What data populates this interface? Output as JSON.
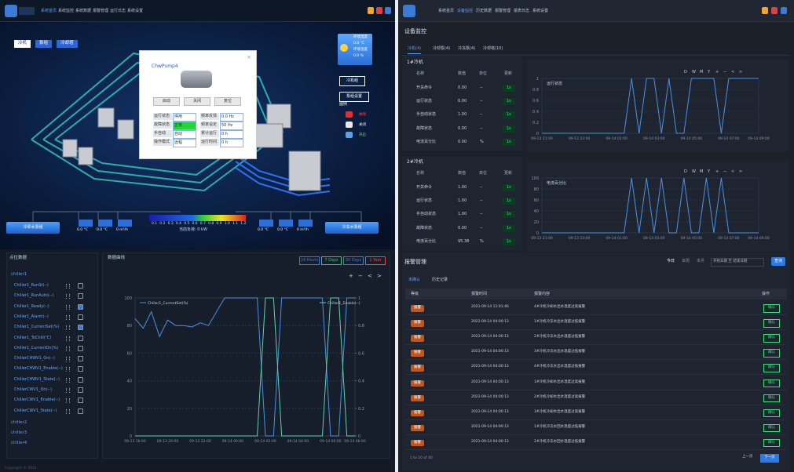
{
  "left": {
    "nav": [
      "系统首页",
      "系统监控",
      "系统数据",
      "报警管理",
      "运行日志",
      "系统设置"
    ],
    "scene": {
      "tabs": [
        "冷机",
        "泵组",
        "冷却塔"
      ],
      "env": [
        "环境温度",
        "0.0 °C",
        "环境湿度",
        "0.0 %"
      ],
      "buttons": [
        "冷机组",
        "泵组设置"
      ],
      "legend_title": "图例",
      "legend": [
        "故障",
        "关闭",
        "开启"
      ],
      "colorbar": [
        "0.1",
        "0.2",
        "0.3",
        "0.4",
        "0.5",
        "0.6",
        "0.7",
        "0.8",
        "0.9",
        "1.0",
        "1.1",
        "1.2"
      ],
      "load": "当前负荷: 0 kW",
      "left_group": "冷却水泵组",
      "right_group": "冷冻水泵组",
      "left_boxes": [
        "0.0 °C",
        "0.0 °C",
        "0 m³/h"
      ],
      "right_boxes": [
        "0.0 °C",
        "0.0 °C",
        "0 m³/h"
      ]
    },
    "popup": {
      "title": "ChwPump4",
      "buttons": [
        "启动",
        "关闭",
        "复位"
      ],
      "rows": [
        [
          "运行状态",
          "停用",
          "频率反馈",
          "0.0 Hz"
        ],
        [
          "故障状态",
          "正常",
          "频率设定",
          "50 Hz"
        ],
        [
          "手自动",
          "自动",
          "累计运行",
          "0 h"
        ],
        [
          "操作模式",
          "远程",
          "运行时间",
          "0 h"
        ]
      ]
    },
    "points": {
      "title": "点位数据",
      "groups": [
        "chiller1",
        "chiller2",
        "chiller3",
        "chiller4"
      ],
      "items": [
        {
          "name": "Chiller1_RunSt(--)",
          "checked": false
        },
        {
          "name": "Chiller1_RunAuto(--)",
          "checked": false
        },
        {
          "name": "Chiller1_Ready(--)",
          "checked": true
        },
        {
          "name": "Chiller1_Alarm(--)",
          "checked": false
        },
        {
          "name": "Chiller1_CurrentSet(%)",
          "checked": true
        },
        {
          "name": "Chiller1_ToChill(℃)",
          "checked": false
        },
        {
          "name": "Chiller1_CurrentOn(%)",
          "checked": false
        },
        {
          "name": "ChillerCHWV1_On(--)",
          "checked": false
        },
        {
          "name": "ChillerCHWV1_Enable(--)",
          "checked": false
        },
        {
          "name": "ChillerCHWV1_State(--)",
          "checked": false
        },
        {
          "name": "ChillerCWV1_On(--)",
          "checked": false
        },
        {
          "name": "ChillerCWV1_Enable(--)",
          "checked": false
        },
        {
          "name": "ChillerCWV1_State(--)",
          "checked": false
        }
      ]
    },
    "curve": {
      "title": "数据曲线",
      "ranges": [
        "24 Hours",
        "7 Days",
        "30 Days",
        "1 Year"
      ],
      "tools": [
        "+",
        "−",
        "<",
        ">"
      ],
      "chart": {
        "type": "line",
        "ylim": [
          0,
          100
        ],
        "yticks": [
          0,
          20,
          40,
          60,
          80,
          100
        ],
        "y2lim": [
          0,
          1
        ],
        "y2ticks": [
          0,
          0.2,
          0.4,
          0.6,
          0.8,
          1
        ],
        "categories": [
          "09-13 18:00",
          null,
          null,
          null,
          "09-13 20:00",
          null,
          null,
          null,
          "09-13 22:00",
          null,
          null,
          null,
          "09-14 00:00",
          null,
          null,
          null,
          "09-14 02:00",
          null,
          null,
          null,
          "09-14 04:00",
          null,
          null,
          null,
          "09-14 06:00",
          null,
          null,
          "09-14 08:00"
        ],
        "series": [
          {
            "name": "Chiller1_CurrentSet(%)",
            "color": "#4a90e2",
            "values": [
              85,
              78,
              90,
              72,
              84,
              80,
              80,
              79,
              82,
              80,
              90,
              100,
              100,
              100,
              100,
              100,
              0,
              0,
              100,
              100,
              100,
              100,
              100,
              100,
              0,
              0,
              100,
              100
            ]
          },
          {
            "name": "Chiller1_Enable(--)",
            "color": "#5fd3a8",
            "axis": "y2",
            "values": [
              0,
              0,
              0,
              0,
              0,
              0,
              0,
              0,
              0,
              0,
              0,
              0,
              0,
              0,
              0,
              0,
              1,
              1,
              0,
              0,
              0,
              0,
              0,
              0,
              1,
              1,
              0,
              0
            ]
          }
        ]
      }
    },
    "footer": "Copyright © 2021"
  },
  "right": {
    "nav": [
      "系统首页",
      "设备监控",
      "历史数据",
      "报警管理",
      "报表日志",
      "系统设置"
    ],
    "title": "设备监控",
    "tabs": [
      "冷机(4)",
      "冷却泵(4)",
      "冷冻泵(4)",
      "冷却塔(10)"
    ],
    "headers": [
      "名称",
      "数值",
      "单位",
      "更新"
    ],
    "units": [
      {
        "name": "1#冷机",
        "rows": [
          [
            "开关命令",
            "0.00",
            "--",
            "1s"
          ],
          [
            "运行状态",
            "0.00",
            "--",
            "1s"
          ],
          [
            "手自动状态",
            "1.00",
            "--",
            "1s"
          ],
          [
            "故障状态",
            "0.00",
            "--",
            "1s"
          ],
          [
            "电流百分比",
            "0.00",
            "%",
            "1s"
          ]
        ],
        "tools": [
          "D",
          "W",
          "M",
          "Y",
          "+",
          "−",
          "<",
          ">"
        ],
        "chart": {
          "type": "line",
          "title": "运行状态",
          "ylim": [
            0,
            1
          ],
          "yticks": [
            0,
            0.2,
            0.4,
            0.6,
            0.8,
            1
          ],
          "categories": [
            "09-13 21:00",
            null,
            null,
            null,
            null,
            "09-13 23:00",
            null,
            null,
            null,
            null,
            "09-14 01:00",
            null,
            null,
            null,
            null,
            "09-14 03:00",
            null,
            null,
            null,
            null,
            "09-14 05:00",
            null,
            null,
            null,
            null,
            "09-14 07:00",
            null,
            null,
            null,
            "09-14 09:00"
          ],
          "series": [
            {
              "name": "运行状态",
              "color": "#4a90e2",
              "values": [
                0,
                0,
                0,
                0,
                0,
                0,
                0,
                0,
                0,
                0,
                0,
                0,
                1,
                0,
                1,
                1,
                0,
                1,
                0,
                0,
                1,
                1,
                1,
                1,
                0,
                1,
                1,
                1,
                1,
                1
              ]
            }
          ]
        }
      },
      {
        "name": "2#冷机",
        "rows": [
          [
            "开关命令",
            "1.00",
            "--",
            "1s"
          ],
          [
            "运行状态",
            "1.00",
            "--",
            "1s"
          ],
          [
            "手自动状态",
            "1.00",
            "--",
            "1s"
          ],
          [
            "故障状态",
            "0.00",
            "--",
            "1s"
          ],
          [
            "电流百分比",
            "95.38",
            "%",
            "1s"
          ]
        ],
        "tools": [
          "D",
          "W",
          "M",
          "Y",
          "+",
          "−",
          "<",
          ">"
        ],
        "chart": {
          "type": "line",
          "title": "电流百分比",
          "ylim": [
            0,
            100
          ],
          "yticks": [
            0,
            20,
            40,
            60,
            80,
            100
          ],
          "categories": [
            "09-13 21:00",
            null,
            null,
            null,
            null,
            "09-13 23:00",
            null,
            null,
            null,
            null,
            "09-14 01:00",
            null,
            null,
            null,
            null,
            "09-14 03:00",
            null,
            null,
            null,
            null,
            "09-14 05:00",
            null,
            null,
            null,
            null,
            "09-14 07:00",
            null,
            null,
            null,
            "09-14 09:00"
          ],
          "series": [
            {
              "name": "电流百分比",
              "color": "#4a90e2",
              "values": [
                0,
                0,
                0,
                0,
                0,
                0,
                0,
                0,
                0,
                0,
                0,
                0,
                100,
                0,
                100,
                0,
                100,
                0,
                0,
                100,
                0,
                0,
                100,
                0,
                100,
                0,
                0,
                0,
                0,
                0
              ]
            }
          ]
        }
      }
    ],
    "alarm": {
      "title": "报警管理",
      "filters": [
        "今日",
        "本周",
        "本月"
      ],
      "date": "开始日期 至 结束日期",
      "query": "查询",
      "tabs": [
        "未确认",
        "历史记录"
      ],
      "headers": [
        "等级",
        "报警时间",
        "报警内容",
        "操作"
      ],
      "confirm": "确认",
      "rows": [
        [
          "报警",
          "2021-09-14 11:01:46",
          "4#冷机冷却水出水温度过高报警"
        ],
        [
          "报警",
          "2021-09-14 04:00:13",
          "1#冷机冷冻水出水温度过低报警"
        ],
        [
          "报警",
          "2021-09-14 04:00:13",
          "2#冷机冷冻水出水温度过低报警"
        ],
        [
          "报警",
          "2021-09-14 04:00:13",
          "3#冷机冷冻水出水温度过低报警"
        ],
        [
          "报警",
          "2021-09-14 04:00:13",
          "4#冷机冷冻水出水温度过低报警"
        ],
        [
          "报警",
          "2021-09-14 04:00:13",
          "1#冷机冷却水出水温度过高报警"
        ],
        [
          "报警",
          "2021-09-14 04:00:13",
          "2#冷机冷却水出水温度过高报警"
        ],
        [
          "报警",
          "2021-09-14 04:00:13",
          "3#冷机冷却水出水温度过高报警"
        ],
        [
          "报警",
          "2021-09-14 04:00:13",
          "1#冷机冷冻水回水温度过低报警"
        ],
        [
          "报警",
          "2021-09-14 04:00:13",
          "2#冷机冷冻水回水温度过低报警"
        ]
      ],
      "pager": "1 to 10 of 40",
      "prev": "上一页",
      "next": "下一页"
    }
  }
}
